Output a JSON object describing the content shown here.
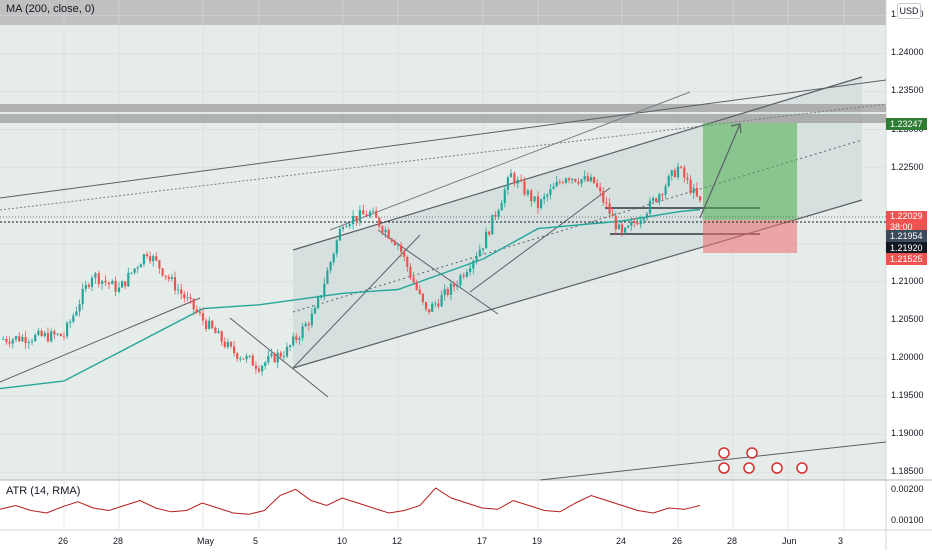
{
  "header": {
    "indicator": "MA (200, close, 0)",
    "currency": "USD"
  },
  "atr_panel": {
    "label": "ATR (14, RMA)",
    "ticks": [
      "0.00200",
      "0.00100"
    ]
  },
  "price_labels": {
    "target": "1.23247",
    "current": "1.22029",
    "countdown": "38:00",
    "level_a": "1.21954",
    "level_b": "1.21920",
    "stop": "1.21525"
  },
  "colors": {
    "up": "#26a69a",
    "down": "#ef5350",
    "ma": "#26a69a",
    "channel_fill": "#d9e4e2",
    "target_zone": "#4caf50",
    "stop_zone": "#f06b6b",
    "resistance_band": "#9e9e9e"
  },
  "chart_data": {
    "type": "line",
    "title": "",
    "xlabel": "",
    "ylabel": "",
    "y_axis_ticks": [
      "1.24500",
      "1.24000",
      "1.23500",
      "1.23000",
      "1.22500",
      "1.21500",
      "1.21000",
      "1.20500",
      "1.20000",
      "1.19500",
      "1.19000",
      "1.18500"
    ],
    "x_axis_ticks": [
      "26",
      "28",
      "May",
      "5",
      "10",
      "12",
      "17",
      "19",
      "24",
      "26",
      "28",
      "Jun",
      "3"
    ],
    "ylim": [
      1.184,
      1.247
    ],
    "grid": true,
    "series": [
      {
        "name": "",
        "x": [
          "26",
          "27",
          "28",
          "29",
          "May",
          "4",
          "5",
          "6",
          "7",
          "10",
          "11",
          "12",
          "13",
          "14",
          "17",
          "18",
          "19",
          "20",
          "21",
          "24",
          "25",
          "26",
          "27"
        ],
        "values": [
          1.203,
          1.211,
          1.209,
          1.214,
          1.205,
          1.201,
          1.199,
          1.201,
          1.206,
          1.218,
          1.219,
          1.215,
          1.206,
          1.2095,
          1.215,
          1.224,
          1.22,
          1.224,
          1.223,
          1.216,
          1.22,
          1.225,
          1.2203
        ]
      },
      {
        "name": "MA (200, close, 0)",
        "x": [
          "26",
          "May",
          "5",
          "10",
          "12",
          "17",
          "19",
          "24",
          "26",
          "27"
        ],
        "values": [
          1.197,
          1.2065,
          1.207,
          1.2085,
          1.209,
          1.213,
          1.217,
          1.218,
          1.2192,
          1.2195
        ]
      }
    ],
    "atr": {
      "ylim": [
        0.0005,
        0.0023
      ],
      "values": [
        0.00125,
        0.0014,
        0.0012,
        0.0011,
        0.00135,
        0.00155,
        0.0013,
        0.0012,
        0.0014,
        0.0016,
        0.0013,
        0.00115,
        0.0012,
        0.0015,
        0.0013,
        0.0011,
        0.00105,
        0.0012,
        0.0018,
        0.00205,
        0.0016,
        0.0014,
        0.0017,
        0.0015,
        0.0013,
        0.0011,
        0.0012,
        0.0014,
        0.0021,
        0.0017,
        0.0015,
        0.0013,
        0.00125,
        0.0016,
        0.0014,
        0.0012,
        0.00115,
        0.0015,
        0.0018,
        0.0016,
        0.0014,
        0.0012,
        0.0011,
        0.0013,
        0.00125,
        0.0014
      ]
    }
  }
}
